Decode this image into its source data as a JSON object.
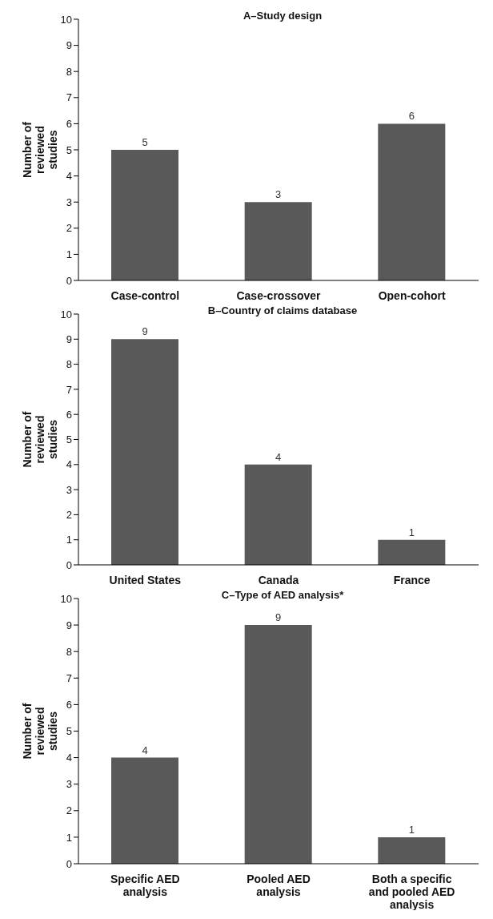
{
  "chart_data": [
    {
      "type": "bar",
      "title": "A–Study design",
      "ylabel": "Number of reviewed studies",
      "categories": [
        "Case-control",
        "Case-crossover",
        "Open-cohort"
      ],
      "values": [
        5,
        3,
        6
      ],
      "color": "#595959",
      "ylim": [
        0,
        10
      ],
      "yticks": [
        0,
        1,
        2,
        3,
        4,
        5,
        6,
        7,
        8,
        9,
        10
      ],
      "data_labels": true,
      "grid": false,
      "legend": false
    },
    {
      "type": "bar",
      "title": "B–Country of claims database",
      "ylabel": "Number of reviewed studies",
      "categories": [
        "United States",
        "Canada",
        "France"
      ],
      "values": [
        9,
        4,
        1
      ],
      "color": "#595959",
      "ylim": [
        0,
        10
      ],
      "yticks": [
        0,
        1,
        2,
        3,
        4,
        5,
        6,
        7,
        8,
        9,
        10
      ],
      "data_labels": true,
      "grid": false,
      "legend": false
    },
    {
      "type": "bar",
      "title": "C–Type of AED analysis*",
      "ylabel": "Number of reviewed studies",
      "categories": [
        "Specific AED analysis",
        "Pooled AED analysis",
        "Both a specific and pooled AED analysis"
      ],
      "values": [
        4,
        9,
        1
      ],
      "color": "#595959",
      "ylim": [
        0,
        10
      ],
      "yticks": [
        0,
        1,
        2,
        3,
        4,
        5,
        6,
        7,
        8,
        9,
        10
      ],
      "data_labels": true,
      "grid": false,
      "legend": false
    }
  ]
}
